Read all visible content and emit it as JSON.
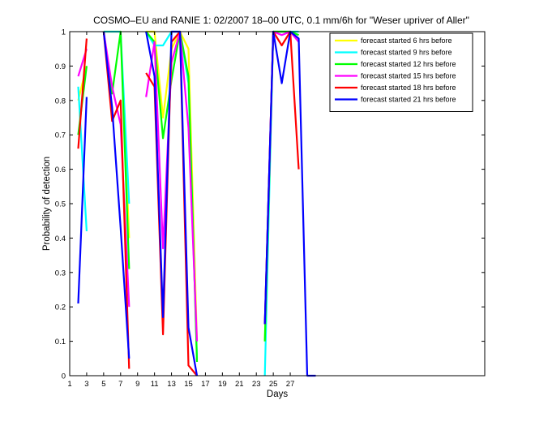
{
  "chart_data": {
    "type": "line",
    "title": "COSMO–EU and RANIE 1: 02/2007 18–00 UTC, 0.1 mm/6h for \"Weser upriver of Aller\"",
    "xlabel": "Days",
    "ylabel": "Probability of detection",
    "xlim": [
      1,
      29
    ],
    "ylim": [
      0,
      1
    ],
    "xticks": [
      1,
      3,
      5,
      7,
      9,
      11,
      13,
      15,
      17,
      19,
      21,
      23,
      25,
      27
    ],
    "yticks": [
      0,
      0.1,
      0.2,
      0.3,
      0.4,
      0.5,
      0.6,
      0.7,
      0.8,
      0.9,
      1
    ],
    "ytick_labels": [
      "0",
      "0.1",
      "0.2",
      "0.3",
      "0.4",
      "0.5",
      "0.6",
      "0.7",
      "0.8",
      "0.9",
      "1"
    ],
    "grid": false,
    "legend_position": "top-right",
    "series": [
      {
        "name": "forecast started 6 hrs before",
        "color": "#ffff00",
        "segments": [
          [
            [
              2,
              0.8
            ],
            [
              3,
              0.9
            ]
          ],
          [
            [
              5,
              1
            ],
            [
              6,
              1
            ],
            [
              7,
              1
            ],
            [
              8,
              0.4
            ]
          ],
          [
            [
              10,
              1
            ],
            [
              11,
              1
            ],
            [
              12,
              0.75
            ],
            [
              13,
              0.95
            ],
            [
              14,
              1
            ],
            [
              15,
              0.95
            ],
            [
              16,
              0.1
            ]
          ],
          [
            [
              24,
              0.1
            ],
            [
              25,
              1
            ],
            [
              26,
              1
            ],
            [
              27,
              1
            ],
            [
              28,
              0.98
            ]
          ]
        ]
      },
      {
        "name": "forecast started 9 hrs before",
        "color": "#00ffff",
        "segments": [
          [
            [
              2,
              0.84
            ],
            [
              3,
              0.42
            ]
          ],
          [
            [
              5,
              1
            ],
            [
              6,
              1
            ],
            [
              7,
              1
            ],
            [
              8,
              0.5
            ]
          ],
          [
            [
              10,
              1
            ],
            [
              11,
              0.96
            ],
            [
              12,
              0.96
            ],
            [
              13,
              1
            ],
            [
              14,
              1
            ],
            [
              15,
              0.85
            ],
            [
              16,
              0.05
            ]
          ],
          [
            [
              24,
              0
            ],
            [
              25,
              1
            ],
            [
              26,
              1
            ],
            [
              27,
              1
            ],
            [
              28,
              1
            ]
          ]
        ]
      },
      {
        "name": "forecast started 12 hrs before",
        "color": "#00ff00",
        "segments": [
          [
            [
              2,
              0.7
            ],
            [
              3,
              0.9
            ]
          ],
          [
            [
              5,
              1
            ],
            [
              6,
              0.82
            ],
            [
              7,
              1
            ],
            [
              8,
              0.31
            ]
          ],
          [
            [
              10,
              1
            ],
            [
              11,
              0.97
            ],
            [
              12,
              0.69
            ],
            [
              13,
              0.86
            ],
            [
              14,
              1
            ],
            [
              15,
              0.87
            ],
            [
              16,
              0.04
            ]
          ],
          [
            [
              24,
              0.1
            ],
            [
              25,
              1
            ],
            [
              26,
              1
            ],
            [
              27,
              1
            ],
            [
              28,
              0.99
            ]
          ]
        ]
      },
      {
        "name": "forecast started 15 hrs before",
        "color": "#ff00ff",
        "segments": [
          [
            [
              2,
              0.87
            ],
            [
              3,
              0.95
            ]
          ],
          [
            [
              5,
              1
            ],
            [
              6,
              0.84
            ],
            [
              7,
              0.73
            ],
            [
              8,
              0.2
            ]
          ],
          [
            [
              10,
              0.81
            ],
            [
              11,
              0.97
            ],
            [
              12,
              0.37
            ],
            [
              13,
              0.91
            ],
            [
              14,
              1
            ],
            [
              15,
              0.72
            ],
            [
              16,
              0.1
            ]
          ],
          [
            [
              24,
              0.15
            ],
            [
              25,
              1
            ],
            [
              26,
              0.99
            ],
            [
              27,
              1
            ],
            [
              28,
              0.97
            ]
          ]
        ]
      },
      {
        "name": "forecast started 18 hrs before",
        "color": "#ff0000",
        "segments": [
          [
            [
              2,
              0.66
            ],
            [
              3,
              0.98
            ]
          ],
          [
            [
              5,
              1
            ],
            [
              6,
              0.74
            ],
            [
              7,
              0.8
            ],
            [
              8,
              0.02
            ]
          ],
          [
            [
              10,
              0.88
            ],
            [
              11,
              0.84
            ],
            [
              12,
              0.12
            ],
            [
              13,
              0.97
            ],
            [
              14,
              1
            ],
            [
              15,
              0.03
            ],
            [
              16,
              0
            ]
          ],
          [
            [
              24,
              0.15
            ],
            [
              25,
              1
            ],
            [
              26,
              0.96
            ],
            [
              27,
              1
            ],
            [
              28,
              0.6
            ]
          ]
        ]
      },
      {
        "name": "forecast started 21 hrs before",
        "color": "#0000ff",
        "segments": [
          [
            [
              2,
              0.21
            ],
            [
              3,
              0.81
            ]
          ],
          [
            [
              5,
              1
            ],
            [
              6,
              0.78
            ],
            [
              7,
              0.43
            ],
            [
              8,
              0.05
            ]
          ],
          [
            [
              10,
              1
            ],
            [
              11,
              0.87
            ],
            [
              12,
              0.17
            ],
            [
              13,
              1
            ],
            [
              14,
              1
            ],
            [
              15,
              0.14
            ],
            [
              16,
              0
            ]
          ],
          [
            [
              24,
              0.15
            ],
            [
              25,
              1
            ],
            [
              26,
              0.85
            ],
            [
              27,
              1
            ],
            [
              28,
              0.98
            ],
            [
              29,
              0
            ],
            [
              30,
              0
            ]
          ]
        ]
      }
    ]
  }
}
